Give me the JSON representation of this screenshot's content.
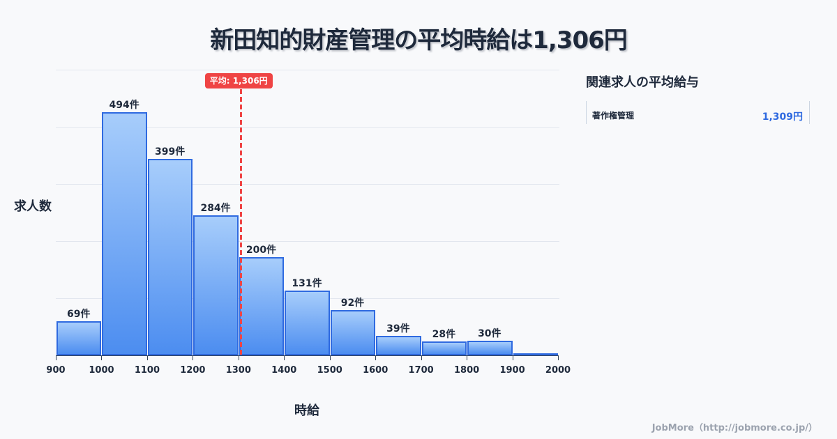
{
  "title": "新田知的財産管理の平均時給は1,306円",
  "chart_data": {
    "type": "bar",
    "title": "新田知的財産管理の平均時給は1,306円",
    "xlabel": "時給",
    "ylabel": "求人数",
    "x_ticks": [
      "900",
      "1000",
      "1100",
      "1200",
      "1300",
      "1400",
      "1500",
      "1600",
      "1700",
      "1800",
      "1900",
      "2000"
    ],
    "bins": [
      {
        "from": 900,
        "to": 1000,
        "value": 69,
        "label": "69件"
      },
      {
        "from": 1000,
        "to": 1100,
        "value": 494,
        "label": "494件"
      },
      {
        "from": 1100,
        "to": 1200,
        "value": 399,
        "label": "399件"
      },
      {
        "from": 1200,
        "to": 1300,
        "value": 284,
        "label": "284件"
      },
      {
        "from": 1300,
        "to": 1400,
        "value": 200,
        "label": "200件"
      },
      {
        "from": 1400,
        "to": 1500,
        "value": 131,
        "label": "131件"
      },
      {
        "from": 1500,
        "to": 1600,
        "value": 92,
        "label": "92件"
      },
      {
        "from": 1600,
        "to": 1700,
        "value": 39,
        "label": "39件"
      },
      {
        "from": 1700,
        "to": 1800,
        "value": 28,
        "label": "28件"
      },
      {
        "from": 1800,
        "to": 1900,
        "value": 30,
        "label": "30件"
      },
      {
        "from": 1900,
        "to": 2000,
        "value": 0,
        "label": ""
      }
    ],
    "categories": [
      "900-1000",
      "1000-1100",
      "1100-1200",
      "1200-1300",
      "1300-1400",
      "1400-1500",
      "1500-1600",
      "1600-1700",
      "1700-1800",
      "1800-1900",
      "1900-2000"
    ],
    "values": [
      69,
      494,
      399,
      284,
      200,
      131,
      92,
      39,
      28,
      30,
      0
    ],
    "xlim": [
      900,
      2000
    ],
    "ylim": [
      0,
      580
    ],
    "grid": true,
    "mean": {
      "value": 1306,
      "label": "平均: 1,306円",
      "color": "#ef4444"
    },
    "bar_color": "#2f6ae0"
  },
  "side_panel": {
    "title": "関連求人の平均給与",
    "items": [
      {
        "label": "著作権管理",
        "value": "1,309円"
      }
    ]
  },
  "footer": "JobMore（http://jobmore.co.jp/）"
}
